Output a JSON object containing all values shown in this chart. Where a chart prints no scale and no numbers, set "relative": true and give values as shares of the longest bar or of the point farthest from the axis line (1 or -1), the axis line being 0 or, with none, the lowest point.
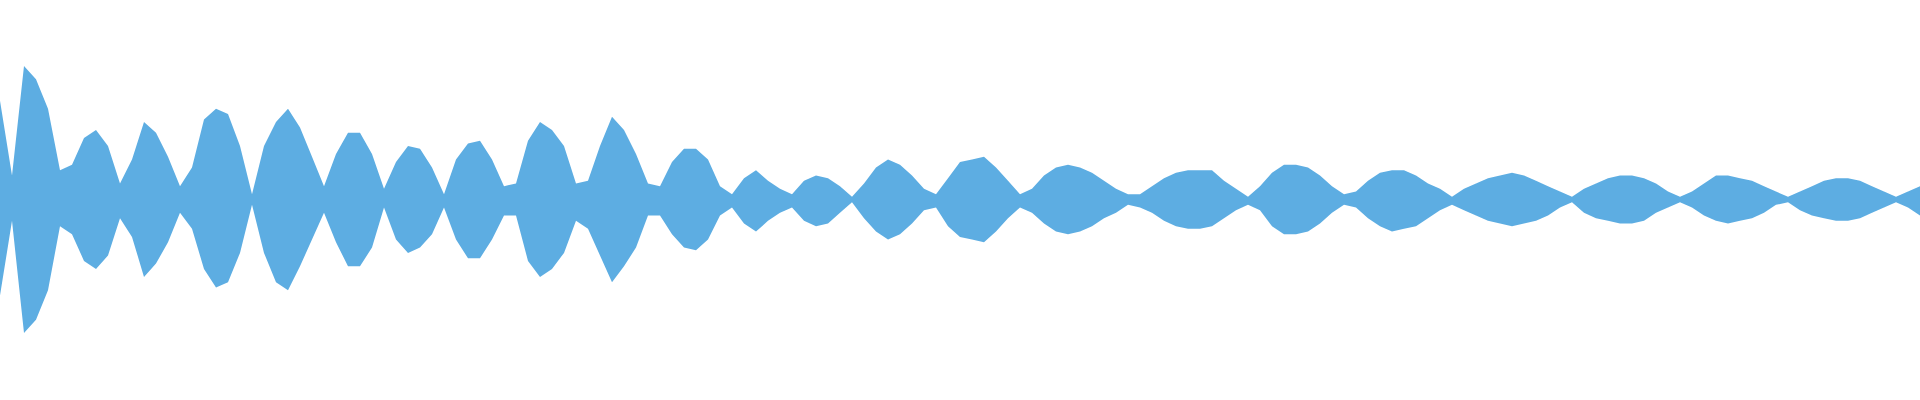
{
  "chart_data": {
    "type": "area",
    "relative": true,
    "tick_labels": false,
    "ref_lines": [
      {
        "axis": "y",
        "value": 0,
        "color": "#5dade2"
      }
    ],
    "categories": [
      null,
      null,
      null,
      null,
      null,
      null,
      null,
      null,
      null,
      null,
      null,
      null,
      null,
      null,
      null,
      null,
      null,
      null,
      null,
      null,
      null,
      null,
      null,
      null,
      null,
      null,
      null,
      null,
      null,
      null,
      null,
      null,
      null,
      null,
      null,
      null,
      null,
      null,
      null,
      null,
      null,
      null,
      null,
      null,
      null,
      null,
      null,
      null,
      null,
      null,
      null,
      null,
      null,
      null,
      null,
      null,
      null,
      null,
      null,
      null,
      null,
      null,
      null,
      null,
      null,
      null,
      null,
      null,
      null,
      null,
      null,
      null,
      null,
      null,
      null,
      null,
      null,
      null,
      null,
      null,
      null,
      null,
      null,
      null,
      null,
      null,
      null,
      null,
      null,
      null,
      null,
      null,
      null,
      null,
      null,
      null,
      null,
      null,
      null,
      null,
      null,
      null,
      null,
      null,
      null,
      null,
      null,
      null,
      null,
      null,
      null,
      null,
      null,
      null,
      null,
      null,
      null,
      null,
      null,
      null,
      null,
      null,
      null,
      null,
      null,
      null,
      null,
      null,
      null,
      null,
      null,
      null,
      null,
      null,
      null,
      null,
      null,
      null,
      null,
      null,
      null,
      null,
      null,
      null,
      null,
      null,
      null,
      null,
      null,
      null,
      null,
      null,
      null,
      null,
      null,
      null,
      null,
      null,
      null,
      null,
      null
    ],
    "series": [
      {
        "color": "#5dade2",
        "values": [
          0.74,
          0.18,
          1,
          0.9,
          0.68,
          0.22,
          0.26,
          0.46,
          0.52,
          0.4,
          0.12,
          0.3,
          0.58,
          0.5,
          0.32,
          0.1,
          0.24,
          0.6,
          0.68,
          0.64,
          0.4,
          0.04,
          0.4,
          0.58,
          0.68,
          0.54,
          0.32,
          0.1,
          0.34,
          0.5,
          0.5,
          0.34,
          0.08,
          0.28,
          0.4,
          0.38,
          0.24,
          0.04,
          0.3,
          0.42,
          0.44,
          0.3,
          0.1,
          0.12,
          0.44,
          0.58,
          0.52,
          0.4,
          0.12,
          0.14,
          0.4,
          0.62,
          0.52,
          0.34,
          0.12,
          0.1,
          0.28,
          0.38,
          0.38,
          0.3,
          0.1,
          0.04,
          0.16,
          0.22,
          0.14,
          0.08,
          0.04,
          0.14,
          0.18,
          0.16,
          0.1,
          0.02,
          0.12,
          0.24,
          0.3,
          0.26,
          0.18,
          0.08,
          0.04,
          0.16,
          0.28,
          0.3,
          0.32,
          0.24,
          0.14,
          0.04,
          0.08,
          0.18,
          0.24,
          0.26,
          0.24,
          0.2,
          0.14,
          0.08,
          0.04,
          0.04,
          0.1,
          0.16,
          0.2,
          0.22,
          0.22,
          0.22,
          0.14,
          0.08,
          0.02,
          0.1,
          0.2,
          0.26,
          0.26,
          0.24,
          0.18,
          0.1,
          0.04,
          0.06,
          0.14,
          0.2,
          0.22,
          0.22,
          0.18,
          0.12,
          0.08,
          0.02,
          0.08,
          0.12,
          0.16,
          0.18,
          0.2,
          0.18,
          0.14,
          0.1,
          0.06,
          0.02,
          0.08,
          0.12,
          0.16,
          0.18,
          0.18,
          0.16,
          0.12,
          0.06,
          0.02,
          0.06,
          0.12,
          0.18,
          0.18,
          0.16,
          0.14,
          0.1,
          0.06,
          0.02,
          0.06,
          0.1,
          0.14,
          0.16,
          0.16,
          0.14,
          0.1,
          0.06,
          0.02,
          0.06,
          0.1
        ]
      },
      {
        "color": "#5dade2",
        "values": [
          -0.72,
          -0.16,
          -1,
          -0.9,
          -0.68,
          -0.2,
          -0.26,
          -0.46,
          -0.52,
          -0.42,
          -0.14,
          -0.28,
          -0.58,
          -0.48,
          -0.32,
          -0.1,
          -0.22,
          -0.52,
          -0.66,
          -0.62,
          -0.4,
          -0.04,
          -0.4,
          -0.62,
          -0.68,
          -0.5,
          -0.3,
          -0.1,
          -0.32,
          -0.5,
          -0.5,
          -0.36,
          -0.06,
          -0.3,
          -0.4,
          -0.36,
          -0.26,
          -0.06,
          -0.3,
          -0.44,
          -0.44,
          -0.3,
          -0.12,
          -0.12,
          -0.46,
          -0.58,
          -0.52,
          -0.4,
          -0.16,
          -0.22,
          -0.42,
          -0.62,
          -0.5,
          -0.36,
          -0.12,
          -0.12,
          -0.26,
          -0.36,
          -0.38,
          -0.3,
          -0.12,
          -0.06,
          -0.18,
          -0.24,
          -0.16,
          -0.1,
          -0.06,
          -0.16,
          -0.2,
          -0.18,
          -0.1,
          -0.02,
          -0.14,
          -0.24,
          -0.3,
          -0.26,
          -0.18,
          -0.08,
          -0.06,
          -0.2,
          -0.28,
          -0.3,
          -0.32,
          -0.24,
          -0.14,
          -0.06,
          -0.1,
          -0.18,
          -0.24,
          -0.26,
          -0.24,
          -0.2,
          -0.14,
          -0.1,
          -0.04,
          -0.06,
          -0.1,
          -0.16,
          -0.2,
          -0.22,
          -0.22,
          -0.2,
          -0.14,
          -0.08,
          -0.04,
          -0.08,
          -0.2,
          -0.26,
          -0.26,
          -0.24,
          -0.18,
          -0.1,
          -0.04,
          -0.06,
          -0.14,
          -0.2,
          -0.24,
          -0.22,
          -0.2,
          -0.14,
          -0.08,
          -0.04,
          -0.08,
          -0.12,
          -0.16,
          -0.18,
          -0.2,
          -0.18,
          -0.16,
          -0.12,
          -0.06,
          -0.02,
          -0.1,
          -0.14,
          -0.16,
          -0.18,
          -0.18,
          -0.16,
          -0.1,
          -0.06,
          -0.02,
          -0.06,
          -0.12,
          -0.16,
          -0.18,
          -0.16,
          -0.14,
          -0.1,
          -0.04,
          -0.02,
          -0.08,
          -0.12,
          -0.14,
          -0.16,
          -0.16,
          -0.14,
          -0.1,
          -0.06,
          -0.02,
          -0.06,
          -0.12
        ]
      }
    ]
  }
}
